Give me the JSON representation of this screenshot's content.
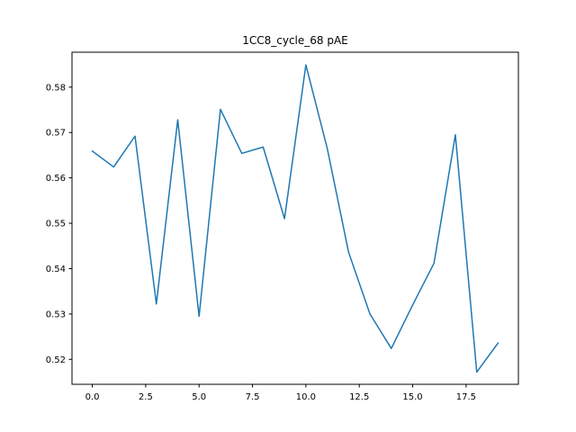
{
  "chart_data": {
    "type": "line",
    "title": "1CC8_cycle_68 pAE",
    "xlabel": "",
    "ylabel": "",
    "xlim": [
      -0.95,
      19.95
    ],
    "ylim": [
      0.5145,
      0.5877
    ],
    "grid": false,
    "x_ticks": [
      0.0,
      2.5,
      5.0,
      7.5,
      10.0,
      12.5,
      15.0,
      17.5
    ],
    "x_tick_labels": [
      "0.0",
      "2.5",
      "5.0",
      "7.5",
      "10.0",
      "12.5",
      "15.0",
      "17.5"
    ],
    "y_ticks": [
      0.52,
      0.53,
      0.54,
      0.55,
      0.56,
      0.57,
      0.58
    ],
    "y_tick_labels": [
      "0.52",
      "0.53",
      "0.54",
      "0.55",
      "0.56",
      "0.57",
      "0.58"
    ],
    "series": [
      {
        "color": "#1f77b4",
        "x": [
          0,
          1,
          2,
          3,
          4,
          5,
          6,
          7,
          8,
          9,
          10,
          11,
          12,
          13,
          14,
          15,
          16,
          17,
          18,
          19
        ],
        "values": [
          0.5659,
          0.5624,
          0.5692,
          0.5322,
          0.5728,
          0.5295,
          0.5751,
          0.5654,
          0.5668,
          0.551,
          0.5849,
          0.5665,
          0.5436,
          0.53,
          0.5224,
          0.532,
          0.5412,
          0.5695,
          0.5172,
          0.5236
        ]
      }
    ]
  }
}
